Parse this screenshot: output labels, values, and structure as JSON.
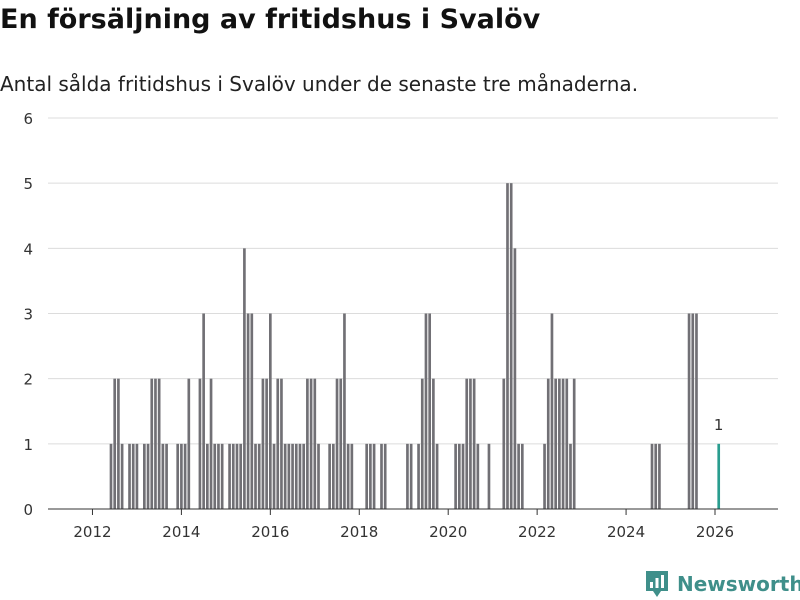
{
  "header": {
    "title": "En försäljning av fritidshus i Svalöv",
    "subtitle": "Antal sålda fritidshus i Svalöv under de senaste tre månaderna."
  },
  "brand": {
    "name": "Newsworthy",
    "icon": "newsworthy-logo-icon",
    "color": "#3f8f8a"
  },
  "colors": {
    "bar": "#717075",
    "highlight": "#2a9d8f",
    "grid": "#dcdcdc",
    "axis": "#333333"
  },
  "chart_data": {
    "type": "bar",
    "grid": true,
    "ylim": [
      0,
      6
    ],
    "yticks": [
      0,
      1,
      2,
      3,
      4,
      5,
      6
    ],
    "xlim": [
      "2011-01",
      "2027-06"
    ],
    "xticks": [
      "2012",
      "2014",
      "2016",
      "2018",
      "2020",
      "2022",
      "2024",
      "2026"
    ],
    "highlight_label": "1",
    "x": [
      "2012-06",
      "2012-07",
      "2012-08",
      "2012-09",
      "2012-11",
      "2012-12",
      "2013-01",
      "2013-03",
      "2013-04",
      "2013-05",
      "2013-06",
      "2013-07",
      "2013-08",
      "2013-09",
      "2013-12",
      "2014-01",
      "2014-02",
      "2014-03",
      "2014-06",
      "2014-07",
      "2014-08",
      "2014-09",
      "2014-10",
      "2014-11",
      "2014-12",
      "2015-02",
      "2015-03",
      "2015-04",
      "2015-05",
      "2015-06",
      "2015-07",
      "2015-08",
      "2015-09",
      "2015-10",
      "2015-11",
      "2015-12",
      "2016-01",
      "2016-02",
      "2016-03",
      "2016-04",
      "2016-05",
      "2016-06",
      "2016-07",
      "2016-08",
      "2016-09",
      "2016-10",
      "2016-11",
      "2016-12",
      "2017-01",
      "2017-02",
      "2017-05",
      "2017-06",
      "2017-07",
      "2017-08",
      "2017-09",
      "2017-10",
      "2017-11",
      "2018-03",
      "2018-04",
      "2018-05",
      "2018-07",
      "2018-08",
      "2019-02",
      "2019-03",
      "2019-05",
      "2019-06",
      "2019-07",
      "2019-08",
      "2019-09",
      "2019-10",
      "2020-03",
      "2020-04",
      "2020-05",
      "2020-06",
      "2020-07",
      "2020-08",
      "2020-09",
      "2020-12",
      "2021-04",
      "2021-05",
      "2021-06",
      "2021-07",
      "2021-08",
      "2021-09",
      "2022-03",
      "2022-04",
      "2022-05",
      "2022-06",
      "2022-07",
      "2022-08",
      "2022-09",
      "2022-10",
      "2022-11",
      "2024-08",
      "2024-09",
      "2024-10",
      "2025-06",
      "2025-07",
      "2025-08",
      "2026-02"
    ],
    "values": [
      1,
      2,
      2,
      1,
      1,
      1,
      1,
      1,
      1,
      2,
      2,
      2,
      1,
      1,
      1,
      1,
      1,
      2,
      2,
      3,
      1,
      2,
      1,
      1,
      1,
      1,
      1,
      1,
      1,
      4,
      3,
      3,
      1,
      1,
      2,
      2,
      3,
      1,
      2,
      2,
      1,
      1,
      1,
      1,
      1,
      1,
      2,
      2,
      2,
      1,
      1,
      1,
      2,
      2,
      3,
      1,
      1,
      1,
      1,
      1,
      1,
      1,
      1,
      1,
      1,
      2,
      3,
      3,
      2,
      1,
      1,
      1,
      1,
      2,
      2,
      2,
      1,
      1,
      2,
      5,
      5,
      4,
      1,
      1,
      1,
      2,
      3,
      2,
      2,
      2,
      2,
      1,
      2,
      1,
      1,
      1,
      3,
      3,
      3,
      1
    ],
    "highlight_index": 99
  }
}
